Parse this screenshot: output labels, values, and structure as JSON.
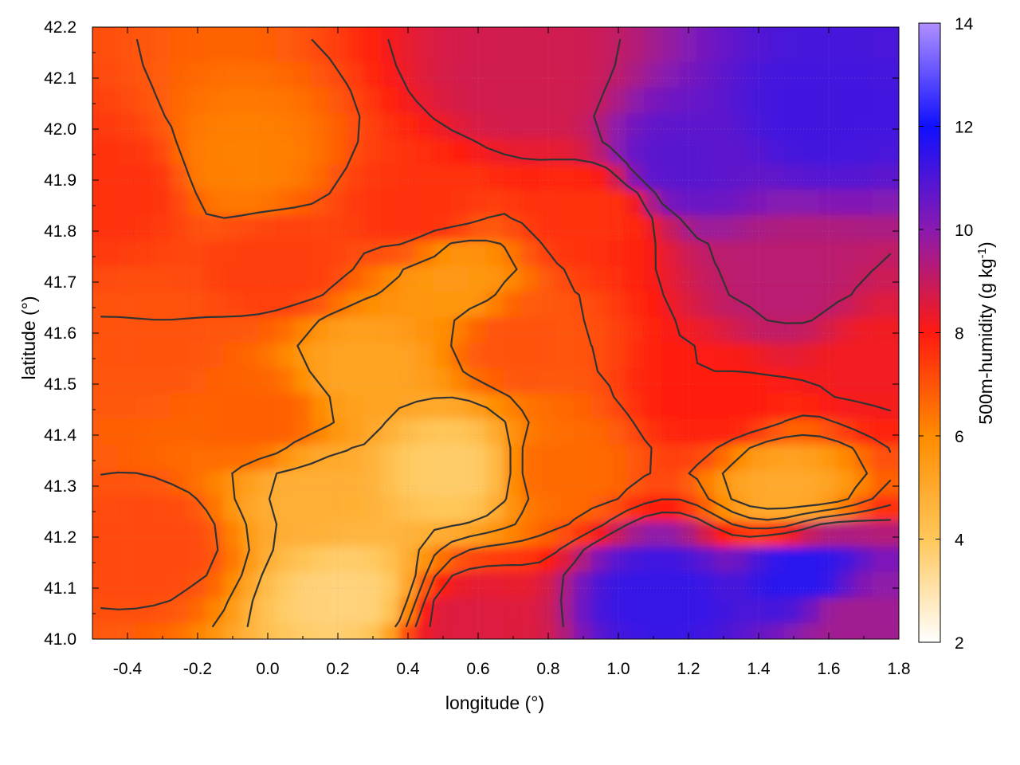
{
  "chart_data": {
    "type": "heatmap",
    "title": "",
    "xlabel": "longitude (°)",
    "ylabel": "latitude (°)",
    "colorbar_label": "500m-humidity (g kg⁻¹)",
    "colorbar_label_parts": {
      "base": "500m-humidity (g kg",
      "sup": "-1",
      "end": ")"
    },
    "xlim": [
      -0.5,
      1.8
    ],
    "ylim": [
      41.0,
      42.2
    ],
    "clim": [
      2,
      14
    ],
    "x_ticks": [
      "-0.4",
      "-0.2",
      "0.0",
      "0.2",
      "0.4",
      "0.6",
      "0.8",
      "1.0",
      "1.2",
      "1.4",
      "1.6",
      "1.8"
    ],
    "x_tick_values": [
      -0.4,
      -0.2,
      0.0,
      0.2,
      0.4,
      0.6,
      0.8,
      1.0,
      1.2,
      1.4,
      1.6,
      1.8
    ],
    "y_ticks": [
      "41.0",
      "41.1",
      "41.2",
      "41.3",
      "41.4",
      "41.5",
      "41.6",
      "41.7",
      "41.8",
      "41.9",
      "42.0",
      "42.1",
      "42.2"
    ],
    "y_tick_values": [
      41.0,
      41.1,
      41.2,
      41.3,
      41.4,
      41.5,
      41.6,
      41.7,
      41.8,
      41.9,
      42.0,
      42.1,
      42.2
    ],
    "colorbar_ticks": [
      "2",
      "4",
      "6",
      "8",
      "10",
      "12",
      "14"
    ],
    "colorbar_tick_values": [
      2,
      4,
      6,
      8,
      10,
      12,
      14
    ],
    "colormap": [
      {
        "value": 2,
        "color": "#ffffff"
      },
      {
        "value": 4,
        "color": "#ffc75a"
      },
      {
        "value": 6,
        "color": "#ff8c00"
      },
      {
        "value": 8,
        "color": "#ff1a10"
      },
      {
        "value": 10,
        "color": "#8a1ab0"
      },
      {
        "value": 12,
        "color": "#1010ff"
      },
      {
        "value": 14,
        "color": "#b090ff"
      }
    ],
    "contour_color": "#333333",
    "grid": true,
    "field_description_points": [
      {
        "x": -0.4,
        "y": 41.9,
        "v": 7.6
      },
      {
        "x": -0.3,
        "y": 41.6,
        "v": 7.0
      },
      {
        "x": -0.3,
        "y": 41.2,
        "v": 7.2
      },
      {
        "x": -0.05,
        "y": 41.95,
        "v": 6.2
      },
      {
        "x": 0.0,
        "y": 41.45,
        "v": 6.8
      },
      {
        "x": 0.05,
        "y": 41.75,
        "v": 7.4
      },
      {
        "x": 0.15,
        "y": 41.3,
        "v": 4.8
      },
      {
        "x": 0.25,
        "y": 41.1,
        "v": 3.6
      },
      {
        "x": 0.3,
        "y": 41.55,
        "v": 5.2
      },
      {
        "x": 0.45,
        "y": 41.85,
        "v": 7.6
      },
      {
        "x": 0.55,
        "y": 41.35,
        "v": 3.8
      },
      {
        "x": 0.55,
        "y": 41.72,
        "v": 5.6
      },
      {
        "x": 0.6,
        "y": 41.05,
        "v": 8.6
      },
      {
        "x": 0.75,
        "y": 41.6,
        "v": 7.0
      },
      {
        "x": 0.75,
        "y": 42.1,
        "v": 8.8
      },
      {
        "x": 0.85,
        "y": 41.35,
        "v": 6.6
      },
      {
        "x": 0.95,
        "y": 41.85,
        "v": 7.6
      },
      {
        "x": 1.15,
        "y": 41.1,
        "v": 11.4
      },
      {
        "x": 1.2,
        "y": 41.95,
        "v": 10.8
      },
      {
        "x": 1.3,
        "y": 41.5,
        "v": 8.0
      },
      {
        "x": 1.5,
        "y": 41.7,
        "v": 9.2
      },
      {
        "x": 1.5,
        "y": 41.3,
        "v": 5.0
      },
      {
        "x": 1.55,
        "y": 41.15,
        "v": 11.6
      },
      {
        "x": 1.6,
        "y": 42.05,
        "v": 11.2
      },
      {
        "x": 1.7,
        "y": 41.05,
        "v": 9.6
      },
      {
        "x": 1.75,
        "y": 41.55,
        "v": 8.2
      }
    ]
  }
}
